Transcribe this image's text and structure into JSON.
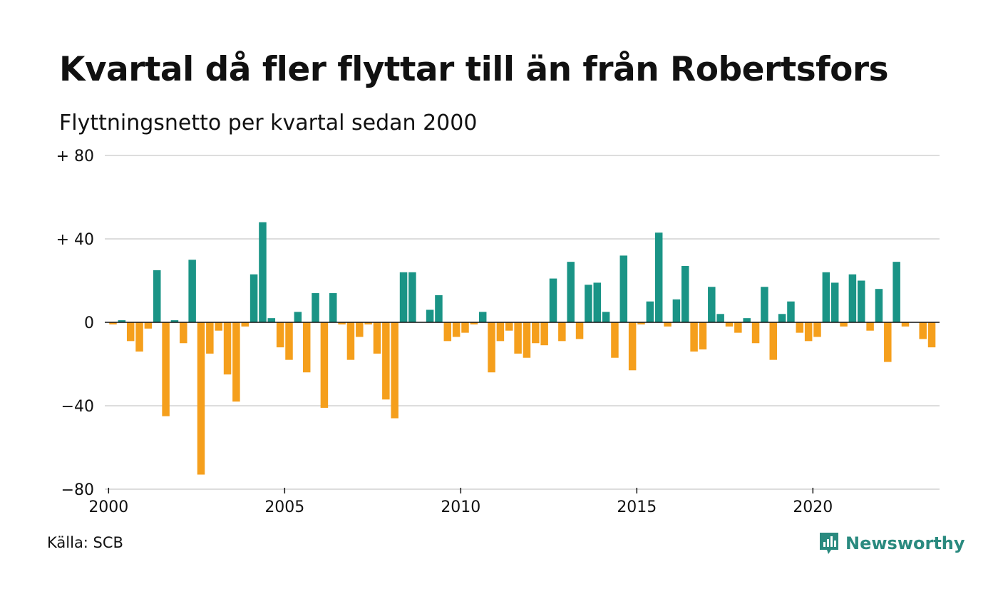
{
  "header": {
    "title": "Kvartal då fler flyttar till än från Robertsfors",
    "subtitle": "Flyttningsnetto per kvartal sedan 2000"
  },
  "footer": {
    "source": "Källa: SCB",
    "brand": "Newsworthy",
    "brand_icon": "newsworthy-logo-icon"
  },
  "colors": {
    "positive": "#1a9486",
    "negative": "#f59f1c",
    "grid": "#dddddd",
    "zero_line": "#111111",
    "brand": "#2a8a7f"
  },
  "chart_data": {
    "type": "bar",
    "x_start": "2000 Q1",
    "ylim": [
      -80,
      80
    ],
    "yticks": [
      80,
      40,
      0,
      -40,
      -80
    ],
    "ytick_labels": [
      "+ 80",
      "+ 40",
      "0",
      "−40",
      "−80"
    ],
    "xticks": [
      2000,
      2005,
      2010,
      2015,
      2020
    ],
    "xtick_labels": [
      "2000",
      "2005",
      "2010",
      "2015",
      "2020"
    ],
    "grid": true,
    "values": [
      -1,
      1,
      -9,
      -14,
      -3,
      25,
      -45,
      1,
      -10,
      30,
      -73,
      -15,
      -4,
      -25,
      -38,
      -2,
      23,
      48,
      2,
      -12,
      -18,
      5,
      -24,
      14,
      -41,
      14,
      -1,
      -18,
      -7,
      -1,
      -15,
      -37,
      -46,
      24,
      24,
      0,
      6,
      13,
      -9,
      -7,
      -5,
      -1,
      5,
      -24,
      -9,
      -4,
      -15,
      -17,
      -10,
      -11,
      21,
      -9,
      29,
      -8,
      18,
      19,
      5,
      -17,
      32,
      -23,
      -1,
      10,
      43,
      -2,
      11,
      27,
      -14,
      -13,
      17,
      4,
      -2,
      -5,
      2,
      -10,
      17,
      -18,
      4,
      10,
      -5,
      -9,
      -7,
      24,
      19,
      -2,
      23,
      20,
      -4,
      16,
      -19,
      29,
      -2,
      0,
      -8,
      -12
    ]
  }
}
